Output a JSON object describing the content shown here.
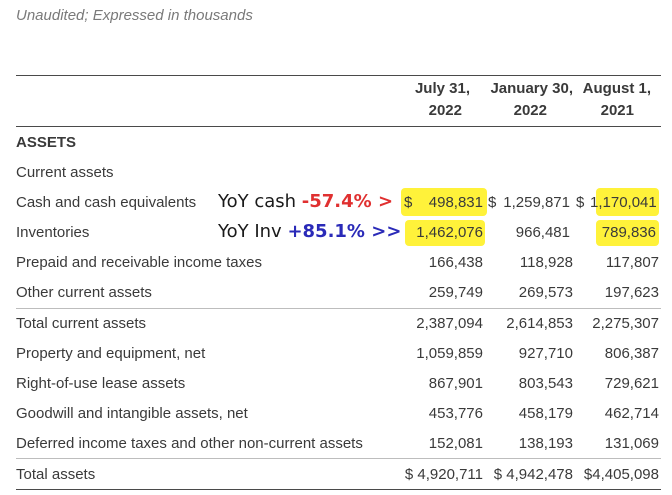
{
  "subtitle": "Unaudited; Expressed in thousands",
  "columns": [
    {
      "line1": "July 31,",
      "line2": "2022"
    },
    {
      "line1": "January 30,",
      "line2": "2022"
    },
    {
      "line1": "August 1,",
      "line2": "2021"
    }
  ],
  "section": "ASSETS",
  "subsection": "Current assets",
  "rows": {
    "cash": {
      "label": "Cash and cash equivalents",
      "dollar1": "$",
      "v1": "498,831",
      "dollar2": "$",
      "v2": "1,259,871",
      "dollar3": "$",
      "v3": "1,170,041"
    },
    "inventories": {
      "label": "Inventories",
      "v1": "1,462,076",
      "v2": "966,481",
      "v3": "789,836"
    },
    "prepaid": {
      "label": "Prepaid and receivable income taxes",
      "v1": "166,438",
      "v2": "118,928",
      "v3": "117,807"
    },
    "other_current": {
      "label": "Other current assets",
      "v1": "259,749",
      "v2": "269,573",
      "v3": "197,623"
    },
    "total_current": {
      "label": "Total current assets",
      "v1": "2,387,094",
      "v2": "2,614,853",
      "v3": "2,275,307"
    },
    "ppe": {
      "label": "Property and equipment, net",
      "v1": "1,059,859",
      "v2": "927,710",
      "v3": "806,387"
    },
    "rou": {
      "label": "Right-of-use lease assets",
      "v1": "867,901",
      "v2": "803,543",
      "v3": "729,621"
    },
    "goodwill": {
      "label": "Goodwill and intangible assets, net",
      "v1": "453,776",
      "v2": "458,179",
      "v3": "462,714"
    },
    "deferred": {
      "label": "Deferred income taxes and other non-current assets",
      "v1": "152,081",
      "v2": "138,193",
      "v3": "131,069"
    },
    "total_assets": {
      "label": "Total assets",
      "v1": "$ 4,920,711",
      "v2": "$ 4,942,478",
      "v3": "$4,405,098"
    }
  },
  "annotations": {
    "cash": {
      "prefix": "YoY cash ",
      "value": "-57.4%",
      "arrow": " >"
    },
    "inv": {
      "prefix": "YoY Inv ",
      "value": "+85.1%",
      "arrow": " >>"
    }
  },
  "colors": {
    "highlight": "#fff23a",
    "red": "#e03030",
    "blue": "#2a2ab8"
  }
}
